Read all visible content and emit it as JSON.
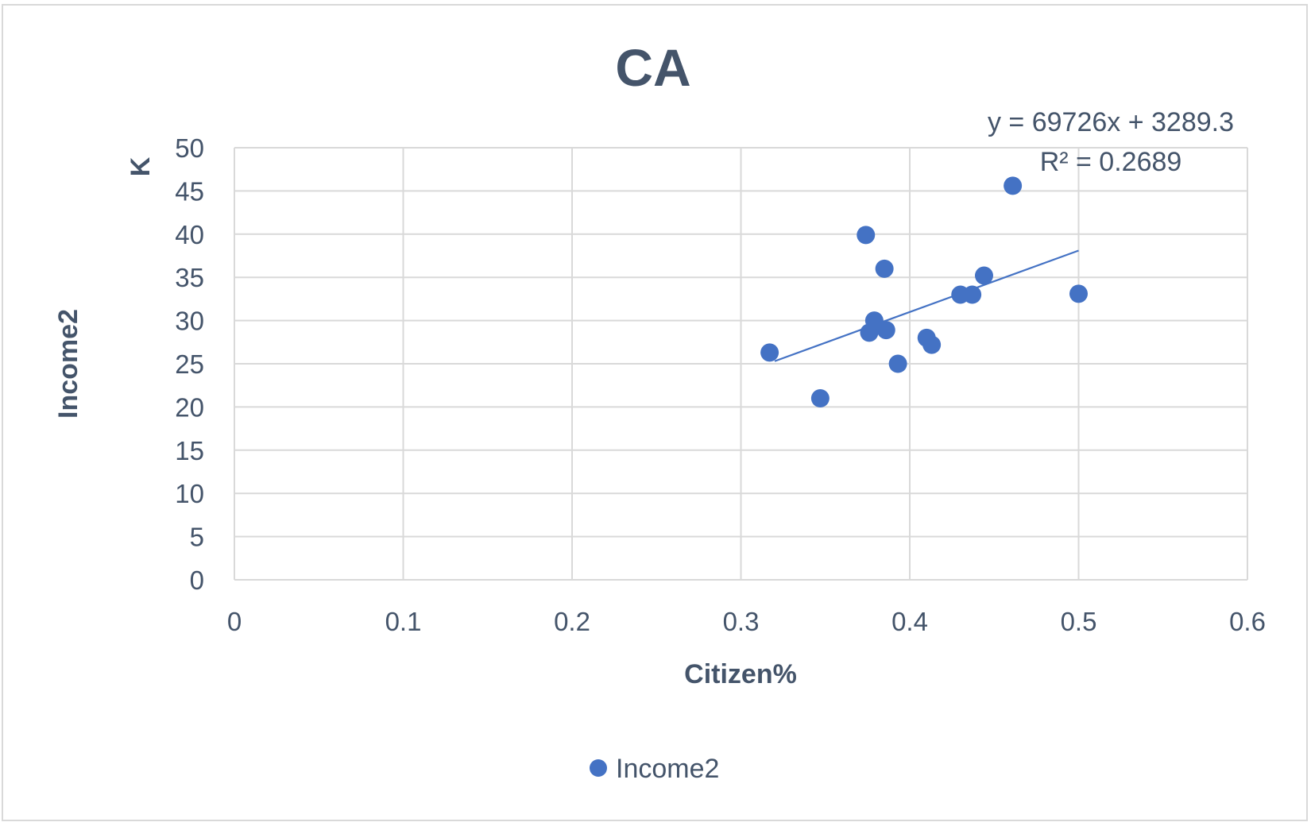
{
  "chart_data": {
    "type": "scatter",
    "title": "CA",
    "xlabel": "Citizen%",
    "ylabel": "Income2",
    "ylabel_unit": "K",
    "xlim": [
      0,
      0.6
    ],
    "ylim": [
      0,
      50
    ],
    "x_ticks": [
      "0",
      "0.1",
      "0.2",
      "0.3",
      "0.4",
      "0.5",
      "0.6"
    ],
    "y_ticks": [
      "0",
      "5",
      "10",
      "15",
      "20",
      "25",
      "30",
      "35",
      "40",
      "45",
      "50"
    ],
    "grid": true,
    "legend_position": "bottom",
    "series": [
      {
        "name": "Income2",
        "color": "#4472c4",
        "points": [
          {
            "x": 0.317,
            "y": 26.3
          },
          {
            "x": 0.347,
            "y": 21.0
          },
          {
            "x": 0.374,
            "y": 39.9
          },
          {
            "x": 0.376,
            "y": 28.6
          },
          {
            "x": 0.379,
            "y": 30.0
          },
          {
            "x": 0.385,
            "y": 36.0
          },
          {
            "x": 0.386,
            "y": 28.9
          },
          {
            "x": 0.393,
            "y": 25.0
          },
          {
            "x": 0.41,
            "y": 28.0
          },
          {
            "x": 0.413,
            "y": 27.2
          },
          {
            "x": 0.43,
            "y": 33.0
          },
          {
            "x": 0.437,
            "y": 33.0
          },
          {
            "x": 0.444,
            "y": 35.2
          },
          {
            "x": 0.461,
            "y": 45.6
          },
          {
            "x": 0.5,
            "y": 33.1
          }
        ]
      }
    ],
    "trendline": {
      "type": "linear",
      "x_range": [
        0.32,
        0.5
      ],
      "y_range": [
        25.3,
        38.1
      ],
      "equation": "y = 69726x + 3289.3",
      "r_squared": "R² = 0.2689",
      "color": "#4472c4"
    }
  }
}
